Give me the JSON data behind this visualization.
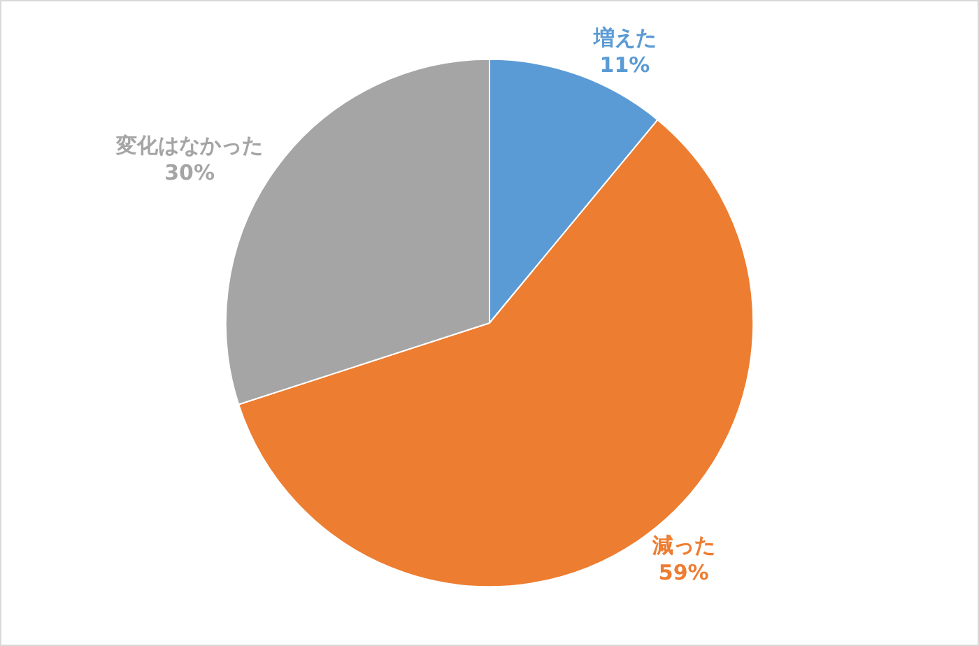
{
  "chart_data": {
    "type": "pie",
    "categories": [
      "増えた",
      "減った",
      "変化はなかった"
    ],
    "values": [
      11,
      59,
      30
    ],
    "value_labels": [
      "11%",
      "59%",
      "30%"
    ],
    "colors": [
      "#5b9bd5",
      "#ed7d31",
      "#a5a5a5"
    ]
  }
}
